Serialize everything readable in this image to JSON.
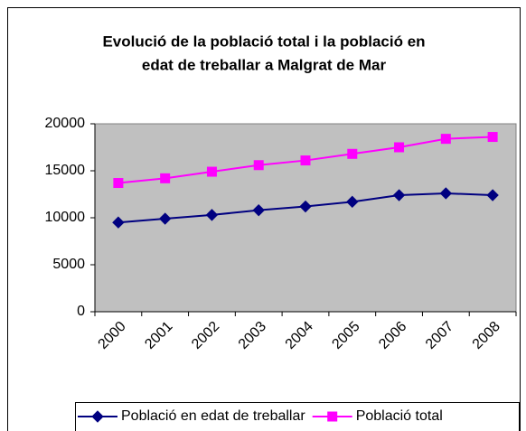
{
  "chart_data": {
    "type": "line",
    "title": [
      "Evolució de la població total i la població en",
      "edat de treballar a Malgrat de Mar"
    ],
    "categories": [
      "2000",
      "2001",
      "2002",
      "2003",
      "2004",
      "2005",
      "2006",
      "2007",
      "2008"
    ],
    "series": [
      {
        "name": "Població en edat de treballar",
        "color": "#000080",
        "marker": "diamond",
        "values": [
          9500,
          9900,
          10300,
          10800,
          11200,
          11700,
          12400,
          12600,
          12400
        ]
      },
      {
        "name": "Població total",
        "color": "#ff00ff",
        "marker": "square",
        "values": [
          13700,
          14200,
          14900,
          15600,
          16100,
          16800,
          17500,
          18400,
          18600
        ]
      }
    ],
    "ylim": [
      0,
      20000
    ],
    "yticks": [
      0,
      5000,
      10000,
      15000,
      20000
    ],
    "plot_background": "#c0c0c0",
    "legend": "bottom"
  }
}
